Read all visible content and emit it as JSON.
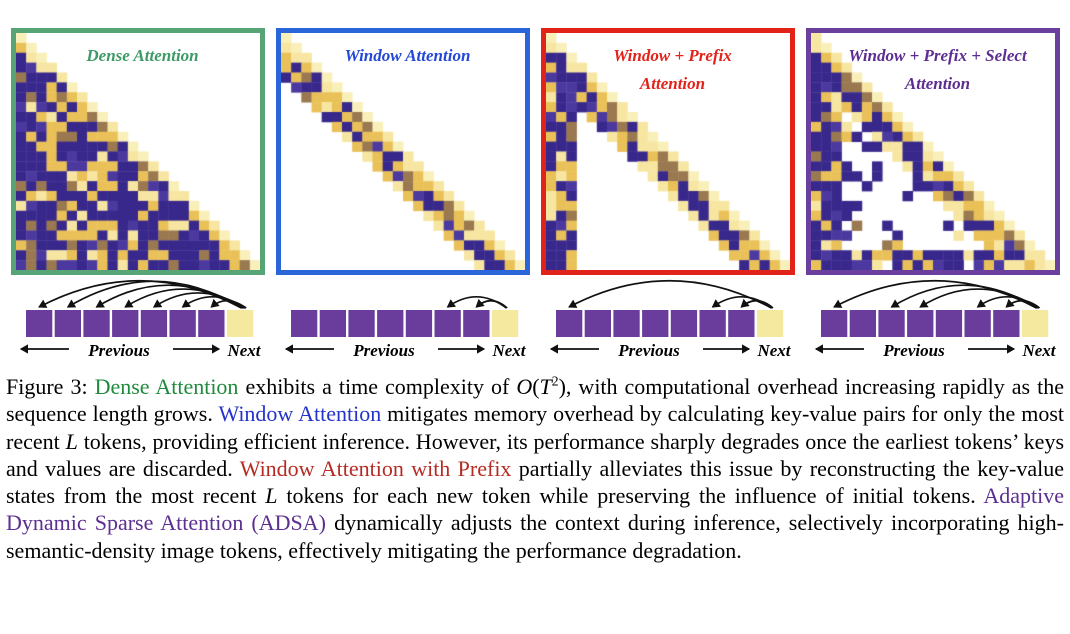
{
  "figure": {
    "heatmap_palette": {
      "dark": "#38288c",
      "gold": "#e9c158",
      "pale": "#f7e6a2",
      "tan": "#9a7850",
      "purple2": "#4c39a0",
      "diag": "#f9efb9"
    },
    "token_colors": {
      "previous_token": "#6a3d9c",
      "next_token": "#f5e9a0"
    },
    "token_labels": {
      "previous": "Previous",
      "next": "Next"
    },
    "panels": [
      {
        "id": "dense-attention",
        "title_lines": [
          "Dense Attention"
        ],
        "border_color": "#57a477",
        "title_color": "#3e9a66",
        "pattern": {
          "type": "dense",
          "n": 24,
          "window": 5,
          "prefix": 3,
          "seed": 3
        },
        "tokens": {
          "count": 8,
          "arc_targets": [
            0,
            1,
            2,
            3,
            4,
            5,
            6
          ]
        }
      },
      {
        "id": "window-attention",
        "title_lines": [
          "Window Attention"
        ],
        "border_color": "#2b65da",
        "title_color": "#2448d4",
        "pattern": {
          "type": "window",
          "n": 24,
          "window": 5,
          "prefix": 3,
          "seed": 11
        },
        "tokens": {
          "count": 8,
          "arc_targets": [
            5,
            6
          ]
        }
      },
      {
        "id": "window-prefix-attention",
        "title_lines": [
          "Window + Prefix",
          "Attention"
        ],
        "border_color": "#e2231a",
        "title_color": "#e2231a",
        "pattern": {
          "type": "window_prefix",
          "n": 24,
          "window": 5,
          "prefix": 3,
          "seed": 7
        },
        "tokens": {
          "count": 8,
          "arc_targets": [
            0,
            5,
            6
          ]
        }
      },
      {
        "id": "window-prefix-select-attention",
        "title_lines": [
          "Window + Prefix + Select",
          "Attention"
        ],
        "border_color": "#6b3f9e",
        "title_color": "#5d2d92",
        "pattern": {
          "type": "window_prefix_select",
          "n": 24,
          "window": 5,
          "prefix": 3,
          "seed": 5
        },
        "tokens": {
          "count": 8,
          "arc_targets": [
            0,
            2,
            3,
            5,
            6
          ]
        }
      }
    ]
  },
  "caption": {
    "colors": {
      "normal": "#000000",
      "green": "#1f8a3c",
      "blue": "#2433c9",
      "red": "#b52b24",
      "purple": "#5c2f91",
      "math": "#000000",
      "sup": "#000000"
    },
    "segments": [
      {
        "text": "Figure 3: ",
        "style": "normal"
      },
      {
        "text": "Dense Attention",
        "style": "green"
      },
      {
        "text": " exhibits a time complexity of ",
        "style": "normal"
      },
      {
        "text": "O",
        "style": "math"
      },
      {
        "text": "(",
        "style": "normal"
      },
      {
        "text": "T",
        "style": "math"
      },
      {
        "text": "2",
        "style": "sup"
      },
      {
        "text": "), with computational overhead increasing rapidly as the sequence length grows. ",
        "style": "normal"
      },
      {
        "text": "Window Attention",
        "style": "blue"
      },
      {
        "text": " mitigates memory overhead by calculating key-value pairs for only the most recent ",
        "style": "normal"
      },
      {
        "text": "L",
        "style": "math"
      },
      {
        "text": " tokens, providing efficient inference. However, its performance sharply degrades once the earliest tokens’ keys and values are discarded. ",
        "style": "normal"
      },
      {
        "text": "Window Attention with Prefix",
        "style": "red"
      },
      {
        "text": " partially alleviates this issue by reconstructing the key-value states from the most recent ",
        "style": "normal"
      },
      {
        "text": "L",
        "style": "math"
      },
      {
        "text": " tokens for each new token while preserving the influence of initial tokens. ",
        "style": "normal"
      },
      {
        "text": "Adaptive Dynamic Sparse Attention (ADSA)",
        "style": "purple"
      },
      {
        "text": " dynamically adjusts the context during inference, selectively incorporating high-semantic-density image tokens, effectively mitigating the performance degradation.",
        "style": "normal"
      }
    ]
  }
}
